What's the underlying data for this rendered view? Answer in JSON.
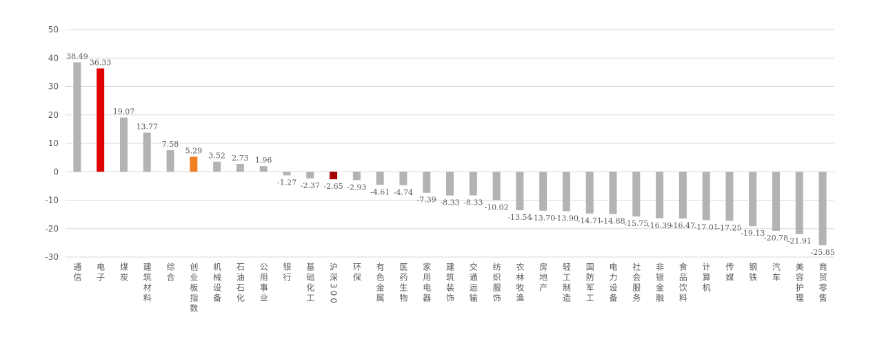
{
  "chart_data": {
    "type": "bar",
    "categories": [
      "通信",
      "电子",
      "煤炭",
      "建筑材料",
      "综合",
      "创业板指数",
      "机械设备",
      "石油石化",
      "公用事业",
      "银行",
      "基础化工",
      "沪深300",
      "环保",
      "有色金属",
      "医药生物",
      "家用电器",
      "建筑装饰",
      "交通运输",
      "纺织服饰",
      "农林牧渔",
      "房地产",
      "轻工制造",
      "国防军工",
      "电力设备",
      "社会服务",
      "非银金融",
      "食品饮料",
      "计算机",
      "传媒",
      "钢铁",
      "汽车",
      "美容护理",
      "商贸零售"
    ],
    "values": [
      38.49,
      36.33,
      19.07,
      13.77,
      7.58,
      5.29,
      3.52,
      2.73,
      1.96,
      -1.27,
      -2.37,
      -2.65,
      -2.93,
      -4.61,
      -4.74,
      -7.39,
      -8.33,
      -8.33,
      -10.02,
      -13.54,
      -13.7,
      -13.9,
      -14.71,
      -14.88,
      -15.75,
      -16.39,
      -16.47,
      -17.01,
      -17.25,
      -19.13,
      -20.78,
      -21.91,
      -25.85
    ],
    "value_labels": [
      "38.49",
      "36.33",
      "19.07",
      "13.77",
      "7.58",
      "5.29",
      "3.52",
      "2.73",
      "1.96",
      "-1.27",
      "-2.37",
      "-2.65",
      "-2.93",
      "-4.61",
      "-4.74",
      "-7.39",
      "-8.33",
      "-8.33",
      "-10.02",
      "-13.54",
      "-13.70",
      "-13.90",
      "-14.71",
      "-14.88",
      "-15.75",
      "-16.39",
      "-16.47",
      "-17.01",
      "-17.25",
      "-19.13",
      "-20.78",
      "-21.91",
      "-25.85"
    ],
    "colors": [
      "#b3b3b3",
      "#e00000",
      "#b3b3b3",
      "#b3b3b3",
      "#b3b3b3",
      "#f07f22",
      "#b3b3b3",
      "#b3b3b3",
      "#b3b3b3",
      "#b3b3b3",
      "#b3b3b3",
      "#a50000",
      "#b3b3b3",
      "#b3b3b3",
      "#b3b3b3",
      "#b3b3b3",
      "#b3b3b3",
      "#b3b3b3",
      "#b3b3b3",
      "#b3b3b3",
      "#b3b3b3",
      "#b3b3b3",
      "#b3b3b3",
      "#b3b3b3",
      "#b3b3b3",
      "#b3b3b3",
      "#b3b3b3",
      "#b3b3b3",
      "#b3b3b3",
      "#b3b3b3",
      "#b3b3b3",
      "#b3b3b3",
      "#b3b3b3"
    ],
    "ylim": [
      -30,
      50
    ],
    "yticks": [
      -30,
      -20,
      -10,
      0,
      10,
      20,
      30,
      40,
      50
    ],
    "grid": true
  }
}
